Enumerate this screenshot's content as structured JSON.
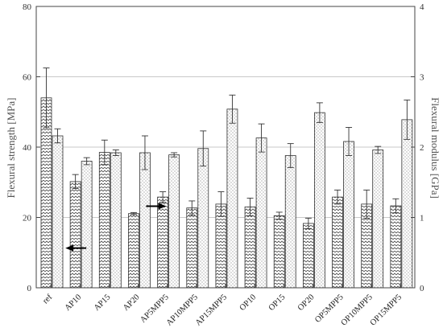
{
  "chart_data": {
    "type": "bar",
    "categories": [
      "ref",
      "AP10",
      "AP15",
      "AP20",
      "AP5MPP5",
      "AP10MPP5",
      "AP15MPP5",
      "OP10",
      "OP15",
      "OP20",
      "OP5MPP5",
      "OP10MPP5",
      "OP15MPP5"
    ],
    "series": [
      {
        "axis": "left",
        "pattern": "diagonal-hatch",
        "values": [
          54,
          30.2,
          38.5,
          21.1,
          25.8,
          22.7,
          23.8,
          23,
          20.5,
          18.3,
          25.8,
          23.8,
          23.3
        ],
        "errors": [
          8.5,
          2,
          3.5,
          0.3,
          1.5,
          2,
          3.5,
          2.5,
          1,
          1.5,
          2,
          4,
          2
        ]
      },
      {
        "axis": "right",
        "pattern": "dotted",
        "values": [
          2.16,
          1.8,
          1.92,
          1.92,
          1.89,
          1.98,
          2.54,
          2.13,
          1.88,
          2.49,
          2.08,
          1.96,
          2.39
        ],
        "errors": [
          0.1,
          0.05,
          0.04,
          0.24,
          0.03,
          0.25,
          0.2,
          0.2,
          0.17,
          0.14,
          0.2,
          0.05,
          0.28
        ]
      }
    ],
    "ylabel": "Flexural strength [MPa]",
    "y2label": "Flexural modulus [GPa]",
    "ylim": [
      0,
      80
    ],
    "y2lim": [
      0,
      4
    ],
    "yticks": [
      0,
      20,
      40,
      60,
      80
    ],
    "y2ticks": [
      0,
      1,
      2,
      3,
      4
    ],
    "grid": true,
    "annotations": [
      {
        "type": "arrow",
        "direction": "left",
        "at_category": "AP10",
        "y_value": 11.3,
        "meaning": "left axis"
      },
      {
        "type": "arrow",
        "direction": "right",
        "at_category": "AP20",
        "y_value": 23.2,
        "meaning": "right axis"
      }
    ]
  }
}
